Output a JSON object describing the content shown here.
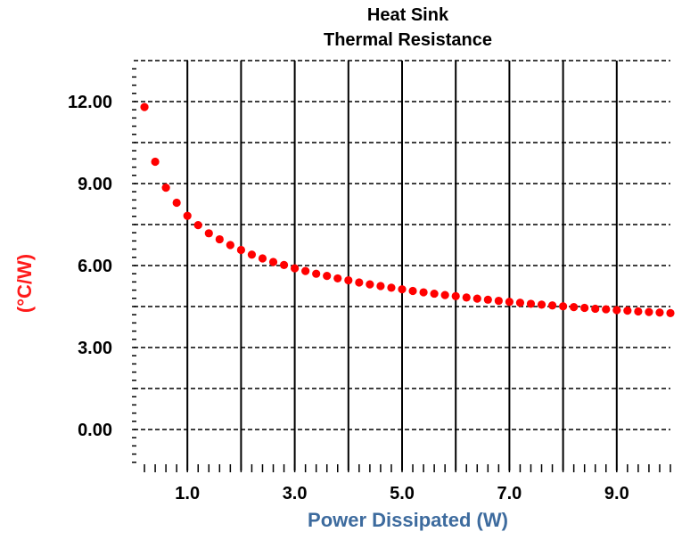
{
  "chart_data": {
    "type": "scatter",
    "title": "Heat Sink",
    "subtitle": "Thermal Resistance",
    "xlabel": "Power Dissipated (W)",
    "ylabel": "(°C/W)",
    "xlim": [
      0.0,
      10.0
    ],
    "ylim": [
      -1.5,
      13.5
    ],
    "x_ticks": [
      "1.0",
      "3.0",
      "5.0",
      "7.0",
      "9.0"
    ],
    "y_ticks": [
      "12.00",
      "9.00",
      "6.00",
      "3.00",
      "0.00"
    ],
    "grid": true,
    "colors": {
      "points": "#ff0000",
      "xlabel": "#3d6b9e",
      "ylabel": "#ff1a1a",
      "grid": "#000000"
    },
    "series": [
      {
        "x": [
          0.2,
          0.4,
          0.6,
          0.8,
          1.0,
          1.2,
          1.4,
          1.6,
          1.8,
          2.0,
          2.2,
          2.4,
          2.6,
          2.8,
          3.0,
          3.2,
          3.4,
          3.6,
          3.8,
          4.0,
          4.2,
          4.4,
          4.6,
          4.8,
          5.0,
          5.2,
          5.4,
          5.6,
          5.8,
          6.0,
          6.2,
          6.4,
          6.6,
          6.8,
          7.0,
          7.2,
          7.4,
          7.6,
          7.8,
          8.0,
          8.2,
          8.4,
          8.6,
          8.8,
          9.0,
          9.2,
          9.4,
          9.6,
          9.8,
          10.0
        ],
        "y": [
          11.8,
          9.8,
          8.85,
          8.3,
          7.82,
          7.48,
          7.18,
          6.96,
          6.75,
          6.57,
          6.4,
          6.26,
          6.13,
          6.02,
          5.9,
          5.8,
          5.7,
          5.62,
          5.53,
          5.46,
          5.38,
          5.31,
          5.25,
          5.19,
          5.13,
          5.07,
          5.02,
          4.97,
          4.92,
          4.88,
          4.83,
          4.79,
          4.75,
          4.71,
          4.67,
          4.64,
          4.6,
          4.57,
          4.54,
          4.51,
          4.48,
          4.45,
          4.42,
          4.4,
          4.37,
          4.35,
          4.32,
          4.3,
          4.28,
          4.26
        ]
      }
    ]
  }
}
